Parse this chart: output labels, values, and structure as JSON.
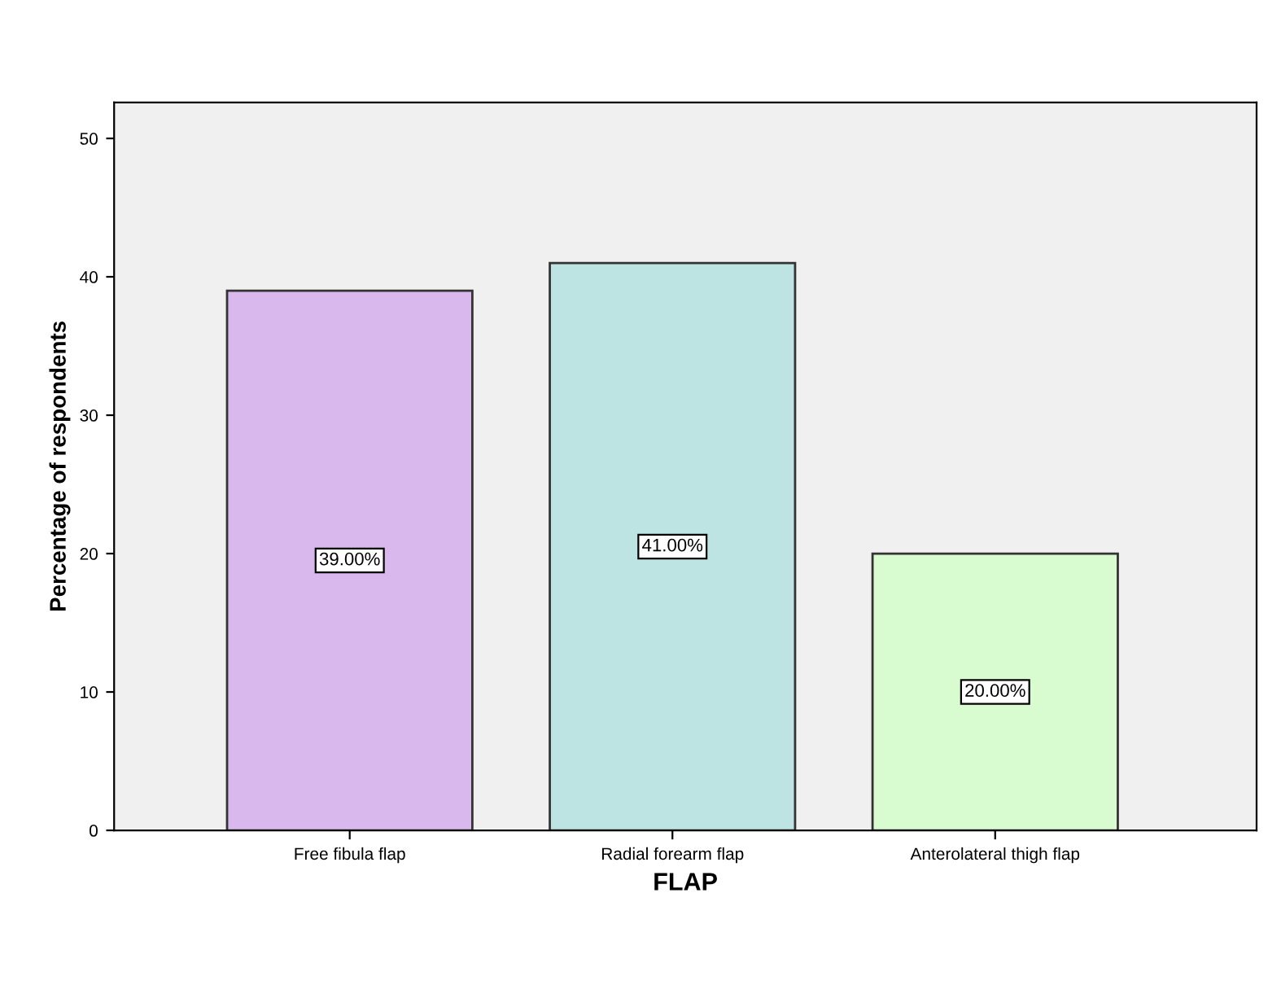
{
  "chart_data": {
    "type": "bar",
    "xlabel": "FLAP",
    "ylabel": "Percentage of respondents",
    "categories": [
      "Free fibula flap",
      "Radial forearm flap",
      "Anterolateral thigh flap"
    ],
    "values": [
      39,
      41,
      20
    ],
    "colors": [
      "#d9b8ee",
      "#bde3e3",
      "#d9fbd0"
    ],
    "value_labels": [
      "39.00%",
      "41.00%",
      "20.00%"
    ],
    "ylim": [
      0,
      52.6
    ],
    "yticks": [
      0,
      10,
      20,
      30,
      40,
      50
    ],
    "grid": false
  }
}
